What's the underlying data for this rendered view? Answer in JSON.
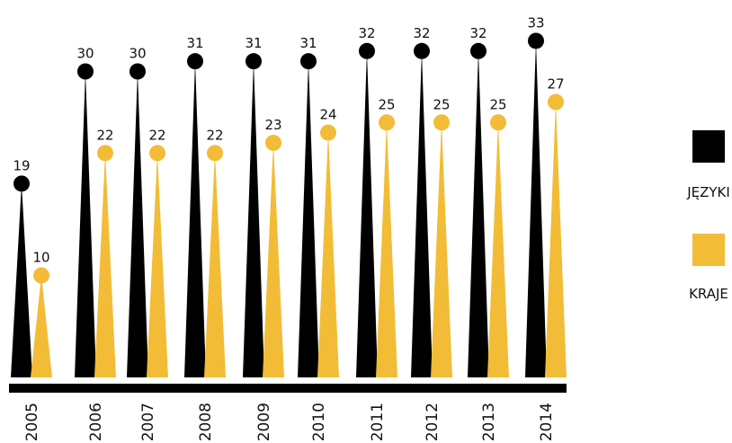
{
  "chart_data": {
    "type": "bar",
    "categories": [
      "2005",
      "2006",
      "2007",
      "2008",
      "2009",
      "2010",
      "2011",
      "2012",
      "2013",
      "2014"
    ],
    "series": [
      {
        "name": "JĘZYKI",
        "color": "#000000",
        "values": [
          19,
          30,
          30,
          31,
          31,
          31,
          32,
          32,
          32,
          33
        ]
      },
      {
        "name": "KRAJE",
        "color": "#f2bc37",
        "values": [
          10,
          22,
          22,
          22,
          23,
          24,
          25,
          25,
          25,
          27
        ]
      }
    ],
    "ylim": [
      0,
      35
    ],
    "grid": false,
    "legend_position": "right"
  }
}
